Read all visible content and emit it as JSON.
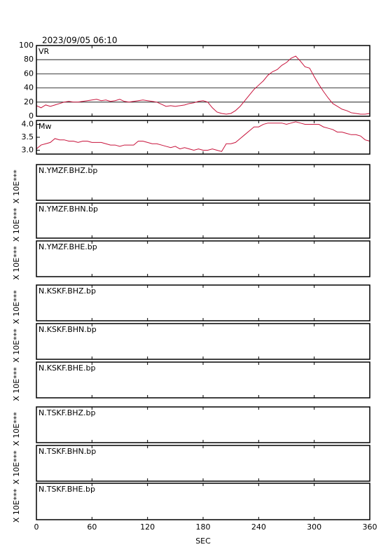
{
  "chart_data": [
    {
      "type": "line",
      "title": "2023/09/05 06:10",
      "label": "VR",
      "color": "#c8143c",
      "grid": true,
      "ylim": [
        0,
        100
      ],
      "yticks": [
        0,
        20,
        40,
        60,
        80,
        100
      ],
      "x": [
        0,
        5,
        10,
        15,
        20,
        25,
        30,
        35,
        40,
        45,
        50,
        55,
        60,
        65,
        70,
        75,
        80,
        85,
        90,
        95,
        100,
        105,
        110,
        115,
        120,
        125,
        130,
        135,
        140,
        145,
        150,
        155,
        160,
        165,
        170,
        175,
        180,
        185,
        190,
        195,
        200,
        205,
        210,
        215,
        220,
        225,
        230,
        235,
        240,
        245,
        250,
        255,
        260,
        265,
        270,
        275,
        280,
        285,
        290,
        295,
        300,
        305,
        310,
        315,
        320,
        325,
        330,
        335,
        340,
        345,
        350,
        355,
        360
      ],
      "values": [
        15,
        12,
        16,
        14,
        16,
        18,
        20,
        21,
        20,
        20,
        21,
        22,
        23,
        24,
        22,
        23,
        21,
        22,
        24,
        21,
        20,
        21,
        22,
        23,
        22,
        21,
        20,
        17,
        14,
        15,
        14,
        15,
        16,
        18,
        19,
        21,
        22,
        20,
        12,
        6,
        4,
        3,
        4,
        8,
        14,
        22,
        30,
        38,
        44,
        50,
        58,
        63,
        66,
        72,
        76,
        82,
        85,
        78,
        70,
        68,
        56,
        45,
        35,
        26,
        18,
        14,
        10,
        8,
        5,
        4,
        3,
        3,
        4
      ]
    },
    {
      "type": "line",
      "label": "Mw",
      "color": "#c8143c",
      "grid": false,
      "ylim": [
        2.85,
        4.15
      ],
      "yticks": [
        {
          "value": 3,
          "label": "3.0"
        },
        3.5,
        {
          "value": 4,
          "label": "4.0"
        }
      ],
      "x": [
        0,
        5,
        10,
        15,
        20,
        25,
        30,
        35,
        40,
        45,
        50,
        55,
        60,
        65,
        70,
        75,
        80,
        85,
        90,
        95,
        100,
        105,
        110,
        115,
        120,
        125,
        130,
        135,
        140,
        145,
        150,
        155,
        160,
        165,
        170,
        175,
        180,
        185,
        190,
        195,
        200,
        205,
        210,
        215,
        220,
        225,
        230,
        235,
        240,
        245,
        250,
        255,
        260,
        265,
        270,
        275,
        280,
        285,
        290,
        295,
        300,
        305,
        310,
        315,
        320,
        325,
        330,
        335,
        340,
        345,
        350,
        355,
        360
      ],
      "values": [
        3.05,
        3.2,
        3.25,
        3.3,
        3.45,
        3.4,
        3.4,
        3.35,
        3.35,
        3.3,
        3.35,
        3.35,
        3.3,
        3.3,
        3.3,
        3.25,
        3.2,
        3.2,
        3.15,
        3.2,
        3.2,
        3.2,
        3.35,
        3.35,
        3.3,
        3.25,
        3.25,
        3.2,
        3.15,
        3.1,
        3.15,
        3.05,
        3.1,
        3.05,
        3.0,
        3.05,
        3.0,
        3.0,
        3.05,
        3.0,
        2.95,
        3.25,
        3.25,
        3.3,
        3.45,
        3.6,
        3.75,
        3.9,
        3.9,
        4.0,
        4.05,
        4.05,
        4.05,
        4.05,
        4.0,
        4.05,
        4.1,
        4.05,
        4.0,
        4.0,
        4.0,
        4.0,
        3.9,
        3.85,
        3.8,
        3.7,
        3.7,
        3.65,
        3.6,
        3.6,
        3.55,
        3.4,
        3.35
      ]
    },
    {
      "type": "waveform",
      "ylabel": "X 10E***",
      "xlabel": "SEC",
      "xlim": [
        0,
        360
      ],
      "xticks": [
        0,
        60,
        120,
        180,
        240,
        300,
        360
      ],
      "panels": [
        "N.YMZF.BHZ.bp",
        "N.YMZF.BHN.bp",
        "N.YMZF.BHE.bp",
        "N.KSKF.BHZ.bp",
        "N.KSKF.BHN.bp",
        "N.KSKF.BHE.bp",
        "N.TSKF.BHZ.bp",
        "N.TSKF.BHN.bp",
        "N.TSKF.BHE.bp"
      ]
    }
  ]
}
